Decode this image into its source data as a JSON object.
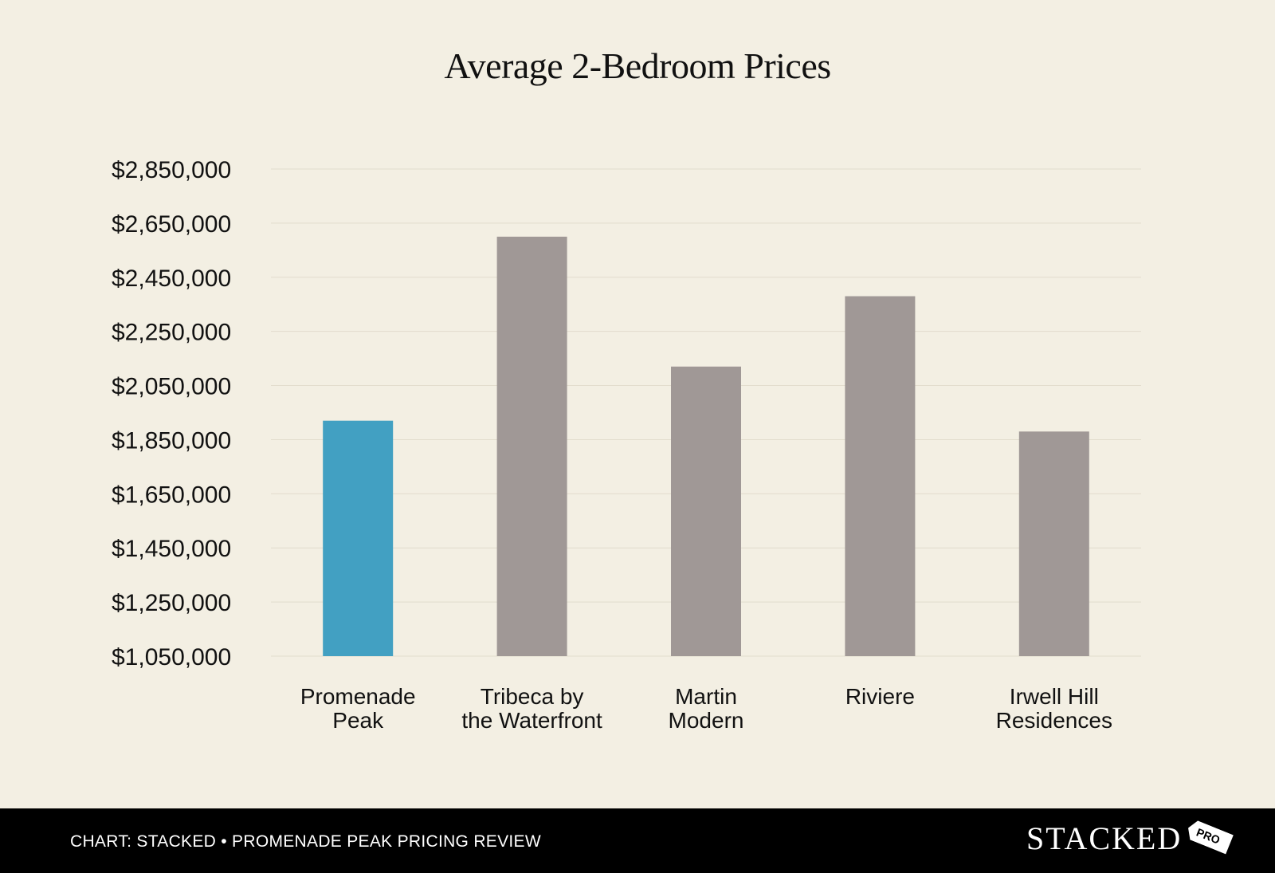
{
  "chart_data": {
    "type": "bar",
    "title": "Average 2-Bedroom Prices",
    "xlabel": "",
    "ylabel": "",
    "ylim": [
      1050000,
      2850000
    ],
    "yticks": [
      "$1,050,000",
      "$1,250,000",
      "$1,450,000",
      "$1,650,000",
      "$1,850,000",
      "$2,050,000",
      "$2,250,000",
      "$2,450,000",
      "$2,650,000",
      "$2,850,000"
    ],
    "ytick_values": [
      1050000,
      1250000,
      1450000,
      1650000,
      1850000,
      2050000,
      2250000,
      2450000,
      2650000,
      2850000
    ],
    "categories": [
      [
        "Promenade",
        "Peak"
      ],
      [
        "Tribeca by",
        "the Waterfront"
      ],
      [
        "Martin",
        "Modern"
      ],
      [
        "Riviere"
      ],
      [
        "Irwell Hill",
        "Residences"
      ]
    ],
    "values": [
      1920000,
      2600000,
      2120000,
      2380000,
      1880000
    ],
    "bar_colors": [
      "#42a0c2",
      "#a09896",
      "#a09896",
      "#a09896",
      "#a09896"
    ],
    "grid": true,
    "legend": "none"
  },
  "footer": {
    "caption": "CHART: STACKED • PROMENADE PEAK PRICING REVIEW",
    "brand": "STACKED",
    "badge": "PRO"
  }
}
